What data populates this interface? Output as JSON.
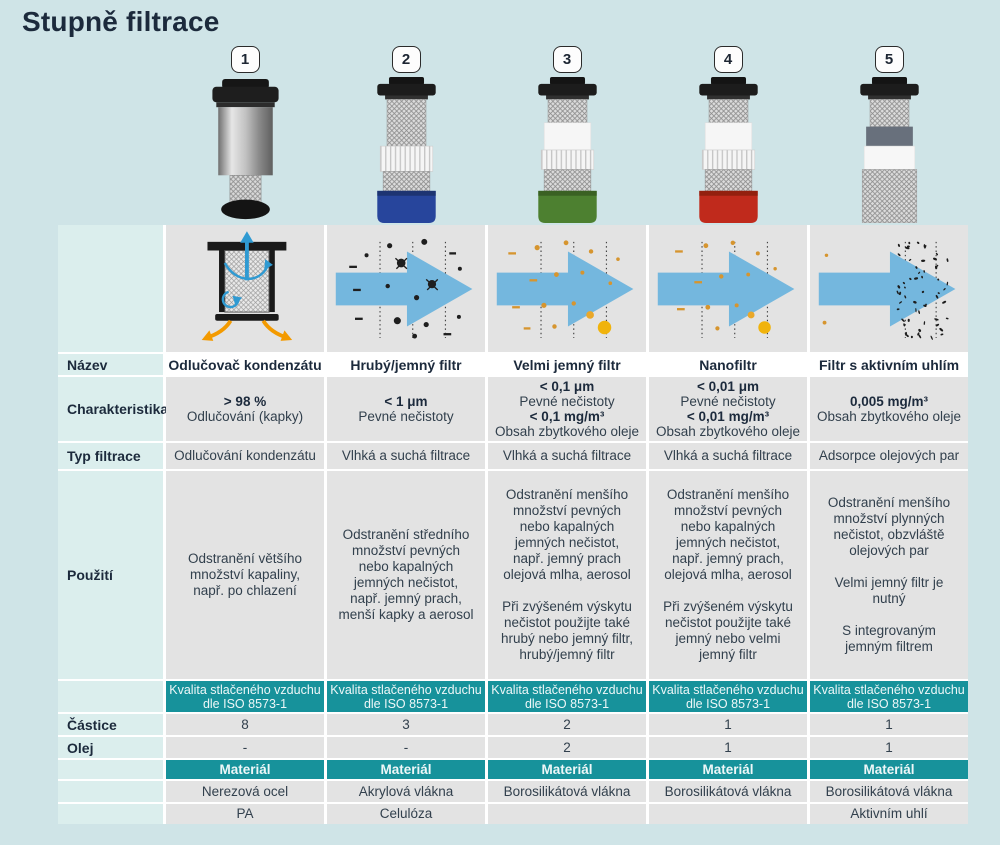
{
  "title": "Stupně filtrace",
  "labels": {
    "nazev": "Název",
    "charakteristika": "Charakteristika",
    "typ_filtrace": "Typ filtrace",
    "pouziti": "Použití",
    "castice": "Částice",
    "olej": "Olej",
    "material": "Materiál"
  },
  "iso_header": {
    "line1": "Kvalita stlačeného vzduchu",
    "line2": "dle ISO 8573-1"
  },
  "columns": [
    {
      "number": "1",
      "nazev": "Odlučovač kondenzátu",
      "char": [
        "> 98 %",
        "Odlučování (kapky)",
        "",
        ""
      ],
      "typ": "Odlučování kondenzátu",
      "pouziti": [
        "Odstranění většího množství kapaliny, např. po chlazení",
        "",
        ""
      ],
      "castice": "8",
      "olej": "-",
      "material": [
        "Nerezová ocel",
        "PA"
      ]
    },
    {
      "number": "2",
      "nazev": "Hrubý/jemný filtr",
      "char": [
        "< 1 μm",
        "Pevné nečistoty",
        "",
        ""
      ],
      "typ": "Vlhká a suchá filtrace",
      "pouziti": [
        "Odstranění středního množství pevných nebo kapalných jemných nečistot, např. jemný prach, menší kapky a aerosol",
        "",
        ""
      ],
      "castice": "3",
      "olej": "-",
      "material": [
        "Akrylová vlákna",
        "Celulóza"
      ]
    },
    {
      "number": "3",
      "nazev": "Velmi jemný filtr",
      "char": [
        "< 0,1 μm",
        "Pevné nečistoty",
        "< 0,1 mg/m³",
        "Obsah zbytkového oleje"
      ],
      "typ": "Vlhká a suchá filtrace",
      "pouziti": [
        "Odstranění menšího množství pevných nebo kapalných jemných nečistot, např. jemný prach olejová mlha, aerosol",
        "Při zvýšeném výskytu nečistot použijte také hrubý nebo jemný filtr, hrubý/jemný filtr",
        ""
      ],
      "castice": "2",
      "olej": "2",
      "material": [
        "Borosilikátová vlákna",
        ""
      ]
    },
    {
      "number": "4",
      "nazev": "Nanofiltr",
      "char": [
        "< 0,01 μm",
        "Pevné nečistoty",
        "< 0,01 mg/m³",
        "Obsah zbytkového oleje"
      ],
      "typ": "Vlhká a suchá filtrace",
      "pouziti": [
        "Odstranění menšího množství pevných nebo kapalných jemných nečistot, např. jemný prach, olejová mlha, aerosol",
        "Při zvýšeném výskytu nečistot použijte také jemný nebo velmi jemný filtr",
        ""
      ],
      "castice": "1",
      "olej": "1",
      "material": [
        "Borosilikátová vlákna",
        ""
      ]
    },
    {
      "number": "5",
      "nazev": "Filtr s aktivním uhlím",
      "char": [
        "0,005 mg/m³",
        "Obsah zbytkového oleje",
        "",
        ""
      ],
      "typ": "Adsorpce olejových par",
      "pouziti": [
        "Odstranění menšího množství plynných nečistot, obzvláště olejových par",
        "Velmi jemný filtr je nutný",
        "S integrovaným jemným filtrem"
      ],
      "castice": "1",
      "olej": "1",
      "material": [
        "Borosilikátová vlákna",
        "Aktivním uhlí"
      ]
    }
  ],
  "colors": {
    "page_bg": "#cfe4e7",
    "label_bg": "#dbeeed",
    "cell_bg": "#e3e3e3",
    "teal": "#17929b",
    "navy": "#1c2a3c",
    "text": "#32404d",
    "arrow_blue": "#74b7de",
    "cup_blue": "#27459c",
    "cup_green": "#4d8030",
    "cup_red": "#c02a1c",
    "particle_orange": "#d6952f",
    "particle_yellow": "#f0b30c"
  }
}
